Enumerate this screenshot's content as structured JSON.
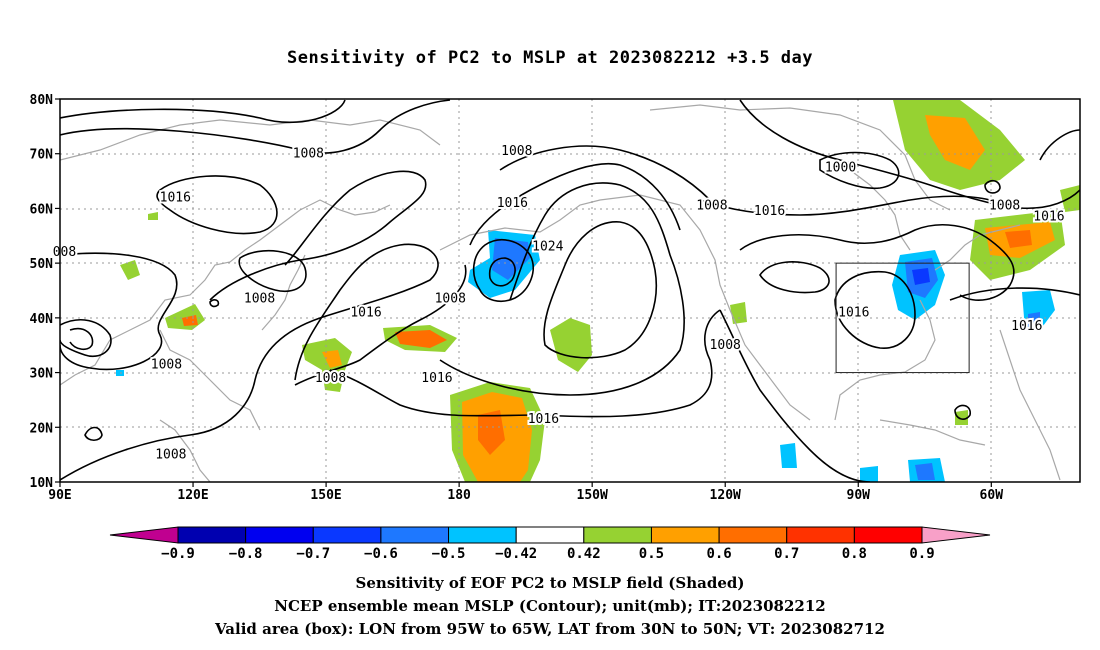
{
  "title": "Sensitivity of PC2 to MSLP at 2023082212 +3.5 day",
  "lat_labels": [
    "80N",
    "70N",
    "60N",
    "50N",
    "40N",
    "30N",
    "20N",
    "10N"
  ],
  "lon_labels": [
    "90E",
    "120E",
    "150E",
    "180",
    "150W",
    "120W",
    "90W",
    "60W"
  ],
  "contour_labels": [
    {
      "text": "1008",
      "lon": 146,
      "lat": 70
    },
    {
      "text": "1016",
      "lon": 116,
      "lat": 62
    },
    {
      "text": "008",
      "lon": 91,
      "lat": 52
    },
    {
      "text": "1008",
      "lon": 135,
      "lat": 43.5
    },
    {
      "text": "1016",
      "lon": 159,
      "lat": 41
    },
    {
      "text": "1008",
      "lon": 114,
      "lat": 31.5
    },
    {
      "text": "1008",
      "lon": 151,
      "lat": 29
    },
    {
      "text": "1016",
      "lon": 175,
      "lat": 29
    },
    {
      "text": "1008",
      "lon": 115,
      "lat": 15
    },
    {
      "text": "1008",
      "lon": -167,
      "lat": 70.5
    },
    {
      "text": "1016",
      "lon": -168,
      "lat": 61
    },
    {
      "text": "1024",
      "lon": -160,
      "lat": 53
    },
    {
      "text": "1008",
      "lon": -182,
      "lat": 43.5
    },
    {
      "text": "1016",
      "lon": -161,
      "lat": 21.5
    },
    {
      "text": "1008",
      "lon": -123,
      "lat": 60.5
    },
    {
      "text": "1016",
      "lon": -110,
      "lat": 59.5
    },
    {
      "text": "1000",
      "lon": -94,
      "lat": 67.5
    },
    {
      "text": "1008",
      "lon": -57,
      "lat": 60.5
    },
    {
      "text": "1016",
      "lon": -47,
      "lat": 58.5
    },
    {
      "text": "1016",
      "lon": -91,
      "lat": 41
    },
    {
      "text": "1008",
      "lon": -120,
      "lat": 35
    },
    {
      "text": "1016",
      "lon": -52,
      "lat": 38.5
    }
  ],
  "valid_box": {
    "lon_west": -95,
    "lon_east": -65,
    "lat_south": 30,
    "lat_north": 50
  },
  "colorbar": {
    "labels": [
      "−0.9",
      "−0.8",
      "−0.7",
      "−0.6",
      "−0.5",
      "−0.42",
      "0.42",
      "0.5",
      "0.6",
      "0.7",
      "0.8",
      "0.9"
    ],
    "colors": [
      "#0000b0",
      "#0000f0",
      "#0a38ff",
      "#1e78ff",
      "#00c3ff",
      "#ffffff",
      "#96d232",
      "#ffa000",
      "#ff6e00",
      "#ff3200",
      "#ff0000"
    ],
    "low_arrow_color": "#c00090",
    "high_arrow_color": "#f8a0c8"
  },
  "footer": {
    "line1": "Sensitivity of EOF PC2 to MSLP field (Shaded)",
    "line2": "NCEP ensemble mean MSLP (Contour); unit(mb); IT:2023082212",
    "line3": "Valid area (box): LON from 95W to 65W, LAT from 30N to 50N; VT: 2023082712"
  }
}
